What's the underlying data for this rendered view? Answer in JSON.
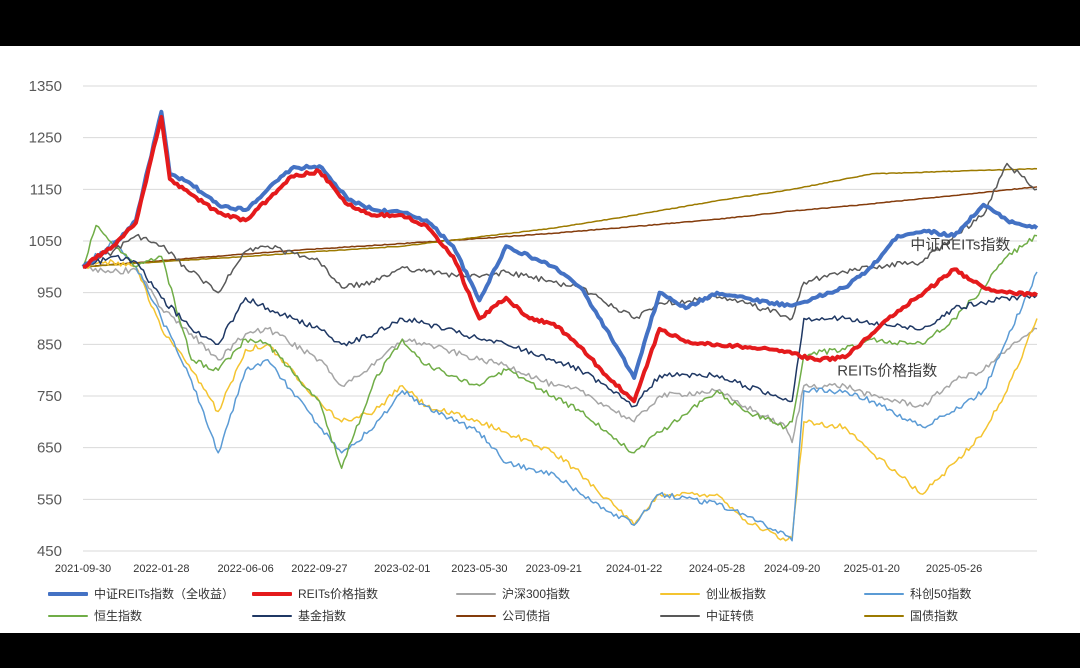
{
  "chart_data": {
    "type": "line",
    "ylim": [
      450,
      1350
    ],
    "yticks": [
      450,
      550,
      650,
      750,
      850,
      950,
      1050,
      1150,
      1250,
      1350
    ],
    "xlim": [
      "2021-09-30",
      "2025-09-30"
    ],
    "xticks": [
      "2021-09-30",
      "2022-01-28",
      "2022-06-06",
      "2022-09-27",
      "2023-02-01",
      "2023-05-30",
      "2023-09-21",
      "2024-01-22",
      "2024-05-28",
      "2024-09-20",
      "2025-01-20",
      "2025-05-26"
    ],
    "grid": true,
    "legend_position": "bottom",
    "annotations": [
      {
        "text": "中证REITs指数",
        "x": "2025-03-20",
        "y": 1034
      },
      {
        "text": "REITs价格指数",
        "x": "2024-11-28",
        "y": 790
      }
    ],
    "series": [
      {
        "name": "中证REITs指数（全收益）",
        "color": "#4472C4",
        "width": 4,
        "x": [
          "2021-09-30",
          "2021-11-15",
          "2021-12-20",
          "2022-01-28",
          "2022-02-10",
          "2022-03-15",
          "2022-04-25",
          "2022-06-06",
          "2022-07-10",
          "2022-08-15",
          "2022-09-27",
          "2022-11-10",
          "2022-12-20",
          "2023-02-01",
          "2023-03-10",
          "2023-04-20",
          "2023-05-30",
          "2023-07-10",
          "2023-08-15",
          "2023-09-21",
          "2023-11-01",
          "2023-12-10",
          "2024-01-22",
          "2024-03-01",
          "2024-04-10",
          "2024-05-28",
          "2024-07-10",
          "2024-08-20",
          "2024-09-20",
          "2024-10-25",
          "2024-12-10",
          "2025-01-20",
          "2025-03-01",
          "2025-04-10",
          "2025-05-26",
          "2025-07-10",
          "2025-08-15",
          "2025-09-30"
        ],
        "y": [
          1000,
          1040,
          1090,
          1300,
          1180,
          1160,
          1120,
          1110,
          1150,
          1190,
          1195,
          1130,
          1110,
          1105,
          1090,
          1040,
          935,
          1040,
          1020,
          1000,
          960,
          880,
          785,
          950,
          920,
          950,
          940,
          930,
          925,
          940,
          960,
          1000,
          1060,
          1070,
          1060,
          1120,
          1090,
          1075
        ]
      },
      {
        "name": "REITs价格指数",
        "color": "#E41A1C",
        "width": 4,
        "x": [
          "2021-09-30",
          "2021-11-15",
          "2021-12-20",
          "2022-01-28",
          "2022-02-10",
          "2022-03-15",
          "2022-04-25",
          "2022-06-06",
          "2022-07-10",
          "2022-08-15",
          "2022-09-27",
          "2022-11-10",
          "2022-12-20",
          "2023-02-01",
          "2023-03-10",
          "2023-04-20",
          "2023-05-30",
          "2023-07-10",
          "2023-08-15",
          "2023-09-21",
          "2023-11-01",
          "2023-12-10",
          "2024-01-22",
          "2024-03-01",
          "2024-04-10",
          "2024-05-28",
          "2024-07-10",
          "2024-08-20",
          "2024-09-20",
          "2024-10-25",
          "2024-12-10",
          "2025-01-20",
          "2025-03-01",
          "2025-04-10",
          "2025-05-26",
          "2025-07-10",
          "2025-08-15",
          "2025-09-30"
        ],
        "y": [
          1000,
          1040,
          1085,
          1290,
          1170,
          1140,
          1105,
          1090,
          1130,
          1175,
          1185,
          1120,
          1100,
          1100,
          1080,
          1020,
          900,
          940,
          900,
          890,
          845,
          790,
          740,
          880,
          855,
          850,
          845,
          840,
          832,
          820,
          825,
          870,
          915,
          950,
          995,
          960,
          950,
          945
        ]
      },
      {
        "name": "沪深300指数",
        "color": "#A6A6A6",
        "width": 1.5,
        "x": [
          "2021-09-30",
          "2021-11-15",
          "2021-12-20",
          "2022-01-28",
          "2022-03-15",
          "2022-04-25",
          "2022-06-06",
          "2022-07-10",
          "2022-09-27",
          "2022-10-31",
          "2022-12-20",
          "2023-02-01",
          "2023-03-10",
          "2023-05-30",
          "2023-07-10",
          "2023-09-21",
          "2023-11-01",
          "2024-01-22",
          "2024-03-01",
          "2024-05-28",
          "2024-07-10",
          "2024-09-10",
          "2024-09-20",
          "2024-10-08",
          "2024-12-10",
          "2025-01-20",
          "2025-04-08",
          "2025-05-26",
          "2025-07-10",
          "2025-08-15",
          "2025-09-30"
        ],
        "y": [
          1000,
          990,
          995,
          920,
          870,
          820,
          870,
          880,
          820,
          770,
          810,
          860,
          850,
          820,
          810,
          770,
          760,
          700,
          750,
          760,
          730,
          690,
          660,
          770,
          770,
          750,
          730,
          780,
          800,
          840,
          880
        ]
      },
      {
        "name": "创业板指数",
        "color": "#F4C430",
        "width": 1.5,
        "x": [
          "2021-09-30",
          "2021-11-15",
          "2021-12-20",
          "2022-01-28",
          "2022-03-15",
          "2022-04-25",
          "2022-06-06",
          "2022-07-10",
          "2022-09-27",
          "2022-10-31",
          "2022-12-20",
          "2023-02-01",
          "2023-03-10",
          "2023-05-30",
          "2023-07-10",
          "2023-09-21",
          "2023-11-01",
          "2024-01-22",
          "2024-03-01",
          "2024-05-28",
          "2024-07-10",
          "2024-09-10",
          "2024-09-20",
          "2024-10-08",
          "2024-12-10",
          "2025-01-20",
          "2025-04-08",
          "2025-05-26",
          "2025-07-10",
          "2025-08-15",
          "2025-09-30"
        ],
        "y": [
          1000,
          1010,
          1000,
          880,
          800,
          720,
          840,
          850,
          740,
          700,
          720,
          770,
          730,
          700,
          680,
          640,
          600,
          500,
          560,
          560,
          510,
          470,
          475,
          700,
          690,
          640,
          560,
          620,
          680,
          760,
          900
        ]
      },
      {
        "name": "科创50指数",
        "color": "#5B9BD5",
        "width": 1.5,
        "x": [
          "2021-09-30",
          "2021-11-15",
          "2021-12-20",
          "2022-01-28",
          "2022-03-15",
          "2022-04-25",
          "2022-06-06",
          "2022-07-10",
          "2022-09-27",
          "2022-10-31",
          "2022-12-20",
          "2023-02-01",
          "2023-03-10",
          "2023-05-30",
          "2023-07-10",
          "2023-09-21",
          "2023-11-01",
          "2024-01-22",
          "2024-03-01",
          "2024-05-28",
          "2024-07-10",
          "2024-09-10",
          "2024-09-20",
          "2024-10-08",
          "2024-12-10",
          "2025-01-20",
          "2025-04-08",
          "2025-05-26",
          "2025-07-10",
          "2025-08-15",
          "2025-09-30"
        ],
        "y": [
          1000,
          1050,
          1000,
          900,
          780,
          640,
          800,
          820,
          690,
          640,
          690,
          760,
          730,
          680,
          620,
          600,
          560,
          500,
          560,
          540,
          520,
          480,
          470,
          760,
          760,
          740,
          690,
          720,
          760,
          860,
          990
        ]
      },
      {
        "name": "恒生指数",
        "color": "#70AD47",
        "width": 1.5,
        "x": [
          "2021-09-30",
          "2021-10-20",
          "2021-12-20",
          "2022-01-28",
          "2022-03-15",
          "2022-04-25",
          "2022-06-06",
          "2022-07-10",
          "2022-09-27",
          "2022-10-31",
          "2022-12-20",
          "2023-02-01",
          "2023-03-10",
          "2023-05-30",
          "2023-07-10",
          "2023-09-21",
          "2023-11-01",
          "2024-01-22",
          "2024-03-01",
          "2024-05-28",
          "2024-07-10",
          "2024-09-10",
          "2024-09-20",
          "2024-10-08",
          "2024-12-10",
          "2025-01-20",
          "2025-04-08",
          "2025-05-26",
          "2025-07-10",
          "2025-08-15",
          "2025-09-30"
        ],
        "y": [
          1000,
          1080,
          1000,
          1020,
          820,
          800,
          860,
          850,
          740,
          610,
          780,
          860,
          810,
          770,
          800,
          750,
          720,
          640,
          680,
          760,
          720,
          690,
          700,
          830,
          840,
          860,
          850,
          900,
          960,
          1020,
          1060
        ]
      },
      {
        "name": "基金指数",
        "color": "#1F3864",
        "width": 1.5,
        "x": [
          "2021-09-30",
          "2021-11-15",
          "2021-12-20",
          "2022-01-28",
          "2022-03-15",
          "2022-04-25",
          "2022-06-06",
          "2022-07-10",
          "2022-09-27",
          "2022-10-31",
          "2022-12-20",
          "2023-02-01",
          "2023-03-10",
          "2023-05-30",
          "2023-07-10",
          "2023-09-21",
          "2023-11-01",
          "2024-01-22",
          "2024-03-01",
          "2024-05-28",
          "2024-07-10",
          "2024-09-10",
          "2024-09-20",
          "2024-10-08",
          "2024-12-10",
          "2025-01-20",
          "2025-04-08",
          "2025-05-26",
          "2025-07-10",
          "2025-08-15",
          "2025-09-30"
        ],
        "y": [
          1000,
          1020,
          1010,
          940,
          880,
          850,
          940,
          920,
          880,
          850,
          870,
          900,
          890,
          860,
          850,
          820,
          800,
          730,
          790,
          790,
          770,
          745,
          740,
          900,
          900,
          890,
          880,
          920,
          930,
          940,
          945
        ]
      },
      {
        "name": "公司债指",
        "color": "#843C0C",
        "width": 1.5,
        "x": [
          "2021-09-30",
          "2022-01-28",
          "2022-06-06",
          "2022-09-27",
          "2023-02-01",
          "2023-05-30",
          "2023-09-21",
          "2024-01-22",
          "2024-05-28",
          "2024-09-20",
          "2025-01-20",
          "2025-05-26",
          "2025-09-30"
        ],
        "y": [
          1000,
          1012,
          1025,
          1035,
          1045,
          1055,
          1065,
          1078,
          1092,
          1108,
          1122,
          1138,
          1155
        ]
      },
      {
        "name": "中证转债",
        "color": "#595959",
        "width": 1.5,
        "x": [
          "2021-09-30",
          "2021-11-15",
          "2021-12-20",
          "2022-01-28",
          "2022-03-15",
          "2022-04-25",
          "2022-06-06",
          "2022-07-10",
          "2022-09-27",
          "2022-10-31",
          "2022-12-20",
          "2023-02-01",
          "2023-03-10",
          "2023-05-30",
          "2023-07-10",
          "2023-09-21",
          "2023-11-01",
          "2024-01-22",
          "2024-03-01",
          "2024-05-28",
          "2024-07-10",
          "2024-09-10",
          "2024-09-20",
          "2024-10-08",
          "2024-12-10",
          "2025-01-20",
          "2025-04-08",
          "2025-05-26",
          "2025-07-10",
          "2025-08-15",
          "2025-09-30"
        ],
        "y": [
          1000,
          1030,
          1060,
          1040,
          990,
          950,
          1030,
          1040,
          1010,
          960,
          970,
          1000,
          990,
          980,
          990,
          970,
          960,
          900,
          930,
          940,
          930,
          905,
          900,
          970,
          990,
          1000,
          1010,
          1060,
          1100,
          1200,
          1150
        ]
      },
      {
        "name": "国债指数",
        "color": "#9C7A00",
        "width": 1.5,
        "x": [
          "2021-09-30",
          "2022-01-28",
          "2022-06-06",
          "2022-09-27",
          "2023-02-01",
          "2023-05-30",
          "2023-09-21",
          "2024-01-22",
          "2024-05-28",
          "2024-09-20",
          "2025-01-20",
          "2025-05-26",
          "2025-09-30"
        ],
        "y": [
          1000,
          1010,
          1020,
          1030,
          1040,
          1058,
          1075,
          1100,
          1128,
          1150,
          1180,
          1185,
          1190
        ]
      }
    ]
  }
}
